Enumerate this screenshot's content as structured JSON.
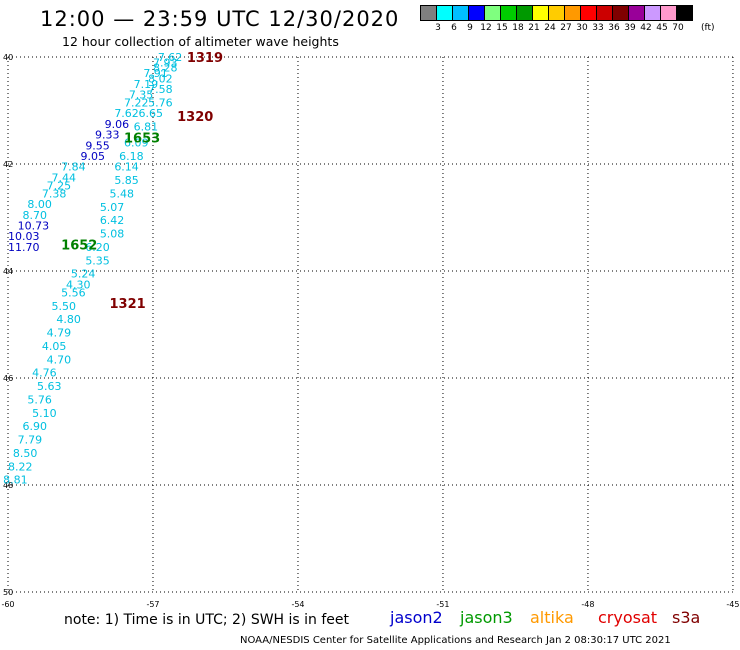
{
  "header": {
    "title": "12:00 — 23:59 UTC 12/30/2020",
    "subtitle": "12 hour collection of altimeter wave heights"
  },
  "legend": {
    "values": [
      "3",
      "6",
      "9",
      "12",
      "15",
      "18",
      "21",
      "24",
      "27",
      "30",
      "33",
      "36",
      "39",
      "42",
      "45",
      "70"
    ],
    "unit": "(ft)",
    "colors": [
      "#7f7f7f",
      "#00ffff",
      "#00bfff",
      "#0000ff",
      "#7fff7f",
      "#00cc00",
      "#009900",
      "#ffff00",
      "#ffcc00",
      "#ff9900",
      "#ff0000",
      "#cc0000",
      "#800000",
      "#990099",
      "#cc99ff",
      "#ff99cc",
      "#000000"
    ]
  },
  "map": {
    "lat_labels": [
      "40",
      "42",
      "44",
      "46",
      "48",
      "50"
    ],
    "lon_labels": [
      "-60",
      "-57",
      "-54",
      "-51",
      "-48",
      "-45"
    ],
    "track_labels": [
      {
        "text": "1319",
        "lat": 40.0,
        "lon": -56.3,
        "color": "#800000"
      },
      {
        "text": "1320",
        "lat": 41.1,
        "lon": -56.5,
        "color": "#800000"
      },
      {
        "text": "1653",
        "lat": 41.5,
        "lon": -57.6,
        "color": "#008000"
      },
      {
        "text": "1652",
        "lat": 43.5,
        "lon": -58.9,
        "color": "#008000"
      },
      {
        "text": "1321",
        "lat": 44.6,
        "lon": -57.9,
        "color": "#800000"
      }
    ],
    "points": [
      {
        "v": "7.62",
        "lat": 40.0,
        "lon": -56.9,
        "c": "#00c0e0"
      },
      {
        "v": "7.93",
        "lat": 40.1,
        "lon": -57.0,
        "c": "#00c0e0"
      },
      {
        "v": "8.28",
        "lat": 40.2,
        "lon": -57.0,
        "c": "#00c0e0"
      },
      {
        "v": "7.91",
        "lat": 40.3,
        "lon": -57.2,
        "c": "#00c0e0"
      },
      {
        "v": "8.02",
        "lat": 40.4,
        "lon": -57.1,
        "c": "#00c0e0"
      },
      {
        "v": "7.19",
        "lat": 40.5,
        "lon": -57.4,
        "c": "#00c0e0"
      },
      {
        "v": "7.58",
        "lat": 40.6,
        "lon": -57.1,
        "c": "#00c0e0"
      },
      {
        "v": "7.35",
        "lat": 40.7,
        "lon": -57.5,
        "c": "#00c0e0"
      },
      {
        "v": "7.22",
        "lat": 40.85,
        "lon": -57.6,
        "c": "#00c0e0"
      },
      {
        "v": "5.76",
        "lat": 40.85,
        "lon": -57.1,
        "c": "#00c0e0"
      },
      {
        "v": "7.62",
        "lat": 41.05,
        "lon": -57.8,
        "c": "#00c0e0"
      },
      {
        "v": "6.65",
        "lat": 41.05,
        "lon": -57.3,
        "c": "#00c0e0"
      },
      {
        "v": "9.06",
        "lat": 41.25,
        "lon": -58.0,
        "c": "#0000c0"
      },
      {
        "v": "6.81",
        "lat": 41.3,
        "lon": -57.4,
        "c": "#00c0e0"
      },
      {
        "v": "9.33",
        "lat": 41.45,
        "lon": -58.2,
        "c": "#0000c0"
      },
      {
        "v": "6.09",
        "lat": 41.6,
        "lon": -57.6,
        "c": "#00c0e0"
      },
      {
        "v": "9.55",
        "lat": 41.65,
        "lon": -58.4,
        "c": "#0000c0"
      },
      {
        "v": "6.18",
        "lat": 41.85,
        "lon": -57.7,
        "c": "#00c0e0"
      },
      {
        "v": "9.05",
        "lat": 41.85,
        "lon": -58.5,
        "c": "#0000c0"
      },
      {
        "v": "7.84",
        "lat": 42.05,
        "lon": -58.9,
        "c": "#00c0e0"
      },
      {
        "v": "6.14",
        "lat": 42.05,
        "lon": -57.8,
        "c": "#00c0e0"
      },
      {
        "v": "7.44",
        "lat": 42.25,
        "lon": -59.1,
        "c": "#00c0e0"
      },
      {
        "v": "5.85",
        "lat": 42.3,
        "lon": -57.8,
        "c": "#00c0e0"
      },
      {
        "v": "7.25",
        "lat": 42.4,
        "lon": -59.2,
        "c": "#00c0e0"
      },
      {
        "v": "5.48",
        "lat": 42.55,
        "lon": -57.9,
        "c": "#00c0e0"
      },
      {
        "v": "7.38",
        "lat": 42.55,
        "lon": -59.3,
        "c": "#00c0e0"
      },
      {
        "v": "8.00",
        "lat": 42.75,
        "lon": -59.6,
        "c": "#00c0e0"
      },
      {
        "v": "5.07",
        "lat": 42.8,
        "lon": -58.1,
        "c": "#00c0e0"
      },
      {
        "v": "8.70",
        "lat": 42.95,
        "lon": -59.7,
        "c": "#00c0e0"
      },
      {
        "v": "6.42",
        "lat": 43.05,
        "lon": -58.1,
        "c": "#00c0e0"
      },
      {
        "v": "10.73",
        "lat": 43.15,
        "lon": -59.8,
        "c": "#0000c0"
      },
      {
        "v": "5.08",
        "lat": 43.3,
        "lon": -58.1,
        "c": "#00c0e0"
      },
      {
        "v": "10.03",
        "lat": 43.35,
        "lon": -60.0,
        "c": "#0000c0"
      },
      {
        "v": "11.70",
        "lat": 43.55,
        "lon": -60.0,
        "c": "#0000c0"
      },
      {
        "v": "6.20",
        "lat": 43.55,
        "lon": -58.4,
        "c": "#00c0e0"
      },
      {
        "v": "5.35",
        "lat": 43.8,
        "lon": -58.4,
        "c": "#00c0e0"
      },
      {
        "v": "5.24",
        "lat": 44.05,
        "lon": -58.7,
        "c": "#00c0e0"
      },
      {
        "v": "4.30",
        "lat": 44.25,
        "lon": -58.8,
        "c": "#00c0e0"
      },
      {
        "v": "5.56",
        "lat": 44.4,
        "lon": -58.9,
        "c": "#00c0e0"
      },
      {
        "v": "5.50",
        "lat": 44.65,
        "lon": -59.1,
        "c": "#00c0e0"
      },
      {
        "v": "4.80",
        "lat": 44.9,
        "lon": -59.0,
        "c": "#00c0e0"
      },
      {
        "v": "4.79",
        "lat": 45.15,
        "lon": -59.2,
        "c": "#00c0e0"
      },
      {
        "v": "4.05",
        "lat": 45.4,
        "lon": -59.3,
        "c": "#00c0e0"
      },
      {
        "v": "4.70",
        "lat": 45.65,
        "lon": -59.2,
        "c": "#00c0e0"
      },
      {
        "v": "4.76",
        "lat": 45.9,
        "lon": -59.5,
        "c": "#00c0e0"
      },
      {
        "v": "5.63",
        "lat": 46.15,
        "lon": -59.4,
        "c": "#00c0e0"
      },
      {
        "v": "5.76",
        "lat": 46.4,
        "lon": -59.6,
        "c": "#00c0e0"
      },
      {
        "v": "5.10",
        "lat": 46.65,
        "lon": -59.5,
        "c": "#00c0e0"
      },
      {
        "v": "6.90",
        "lat": 46.9,
        "lon": -59.7,
        "c": "#00c0e0"
      },
      {
        "v": "7.79",
        "lat": 47.15,
        "lon": -59.8,
        "c": "#00c0e0"
      },
      {
        "v": "8.50",
        "lat": 47.4,
        "lon": -59.9,
        "c": "#00c0e0"
      },
      {
        "v": "8.22",
        "lat": 47.65,
        "lon": -60.0,
        "c": "#00c0e0"
      },
      {
        "v": "8.81",
        "lat": 47.9,
        "lon": -60.1,
        "c": "#00c0e0"
      }
    ]
  },
  "footer": {
    "note": "note:  1) Time is in UTC;  2) SWH is in feet",
    "credit": "NOAA/NESDIS Center for Satellite Applications and Research    Jan  2 08:30:17 UTC 2021",
    "satellites": [
      {
        "name": "jason2",
        "color": "#0000cc"
      },
      {
        "name": "jason3",
        "color": "#009900"
      },
      {
        "name": "altika",
        "color": "#ff9900"
      },
      {
        "name": "cryosat",
        "color": "#e00000"
      },
      {
        "name": "s3a",
        "color": "#800000"
      }
    ]
  }
}
